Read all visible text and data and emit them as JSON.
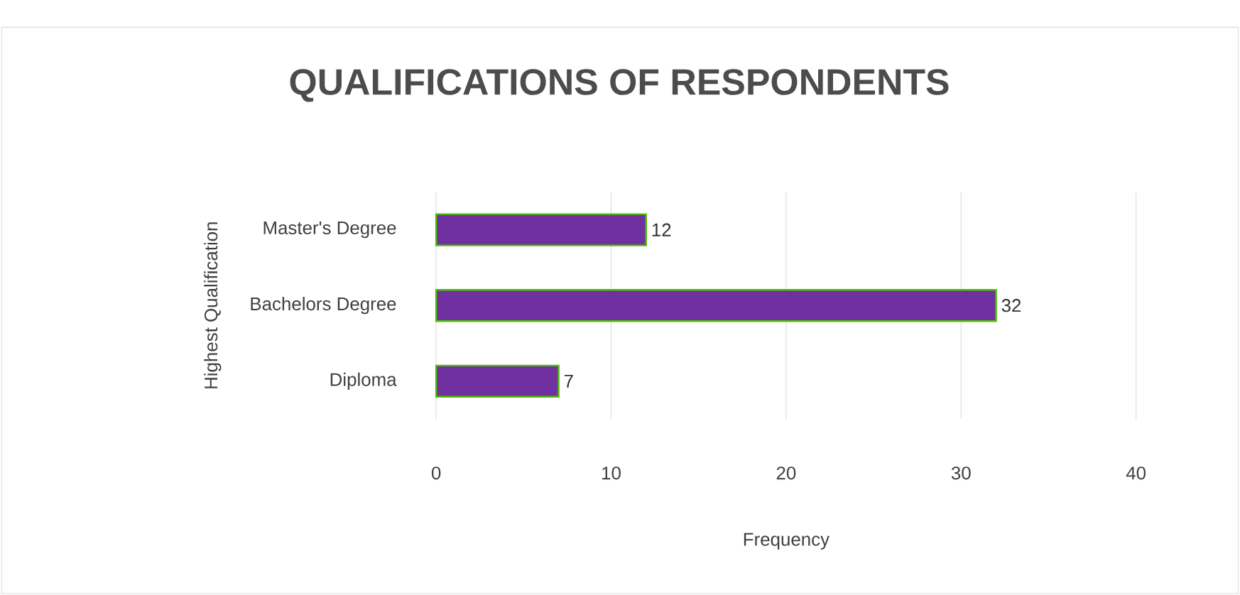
{
  "chart_data": {
    "type": "bar",
    "orientation": "horizontal",
    "title": "QUALIFICATIONS OF RESPONDENTS",
    "xlabel": "Frequency",
    "ylabel": "Highest Qualification",
    "categories": [
      "Master's Degree",
      "Bachelors Degree",
      "Diploma"
    ],
    "values": [
      12,
      32,
      7
    ],
    "color": "#7030a0",
    "xlim": [
      0,
      40
    ],
    "xticks": [
      0,
      10,
      20,
      30,
      40
    ],
    "grid": "x",
    "data_labels": true
  }
}
